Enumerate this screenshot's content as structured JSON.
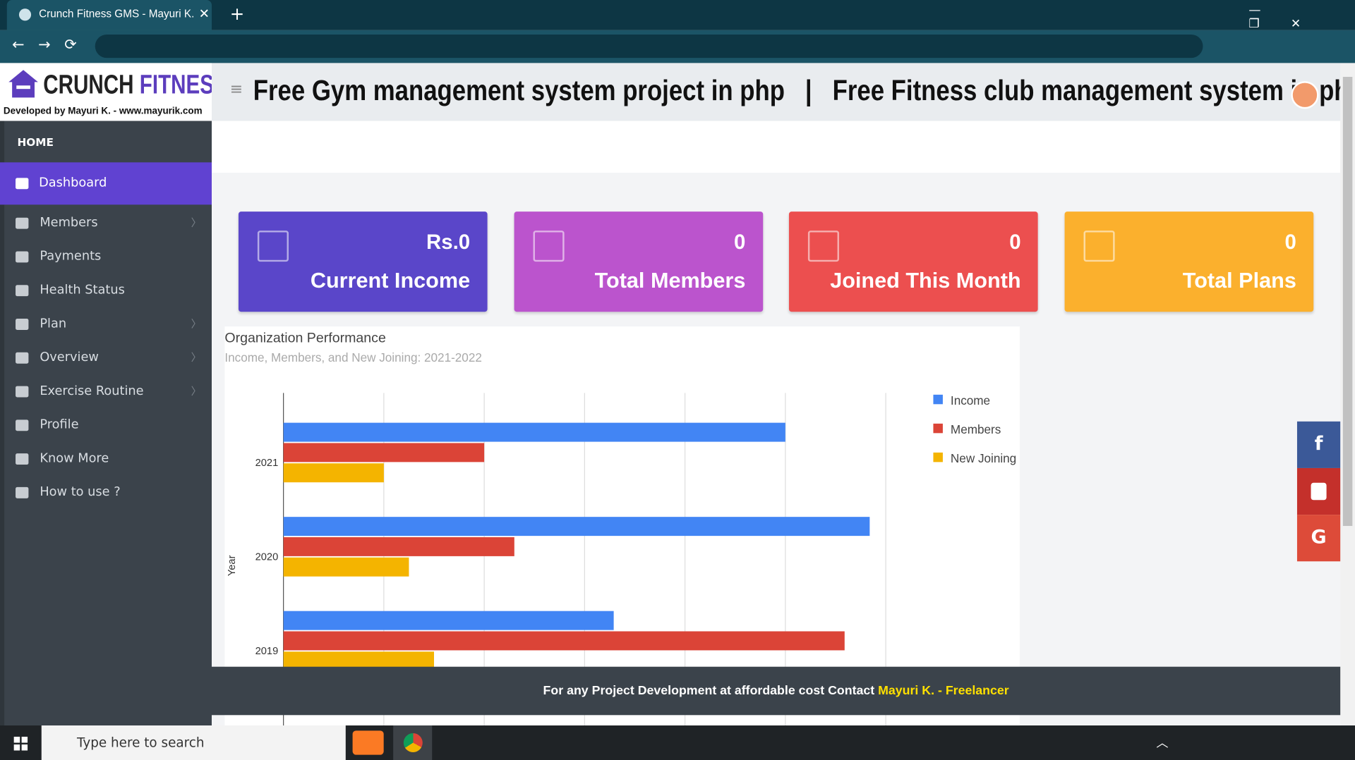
{
  "browser": {
    "tab_title": "Crunch Fitness GMS - Mayuri K."
  },
  "sidebar": {
    "brand_1": "CRUNCH",
    "brand_2": "FITNESS",
    "tagline": "Developed by Mayuri K. - www.mayurik.com",
    "section": "HOME",
    "menu": [
      "Dashboard",
      "Members",
      "Payments",
      "Health Status",
      "Plan",
      "Overview",
      "Exercise Routine",
      "Profile",
      "Know More",
      "How to use ?"
    ]
  },
  "header": {
    "title_1": "Free Gym management system project in php",
    "separator": "|",
    "title_2": "Free Fitness club management system in php"
  },
  "cards": [
    {
      "value": "Rs.0",
      "label": "Current Income"
    },
    {
      "value": 0,
      "label": "Total Members"
    },
    {
      "value": 0,
      "label": "Joined This Month"
    },
    {
      "value": 0,
      "label": "Total Plans"
    }
  ],
  "chart": {
    "type": "bar",
    "orientation": "horizontal",
    "title": "Organization Performance",
    "subtitle": "Income, Members, and New Joining: 2021-2022",
    "y_label": "Year",
    "categories": [
      "2021",
      "2020",
      "2019"
    ],
    "series": [
      {
        "name": "Income",
        "color": "#4285f4",
        "values": [
          5.0,
          5.84,
          3.29
        ]
      },
      {
        "name": "Members",
        "color": "#db4437",
        "values": [
          2.0,
          2.3,
          5.59
        ]
      },
      {
        "name": "New Joining",
        "color": "#f4b400",
        "values": [
          1.0,
          1.25,
          1.5
        ]
      }
    ],
    "xlim": [
      0,
      6
    ],
    "xticks": [
      0,
      1,
      2,
      3,
      4,
      5,
      6
    ],
    "grid": true
  },
  "footer": {
    "text": "For any Project Development at affordable cost Contact",
    "link": "Mayuri K. - Freelancer"
  },
  "taskbar": {
    "search": "Type here to search"
  }
}
